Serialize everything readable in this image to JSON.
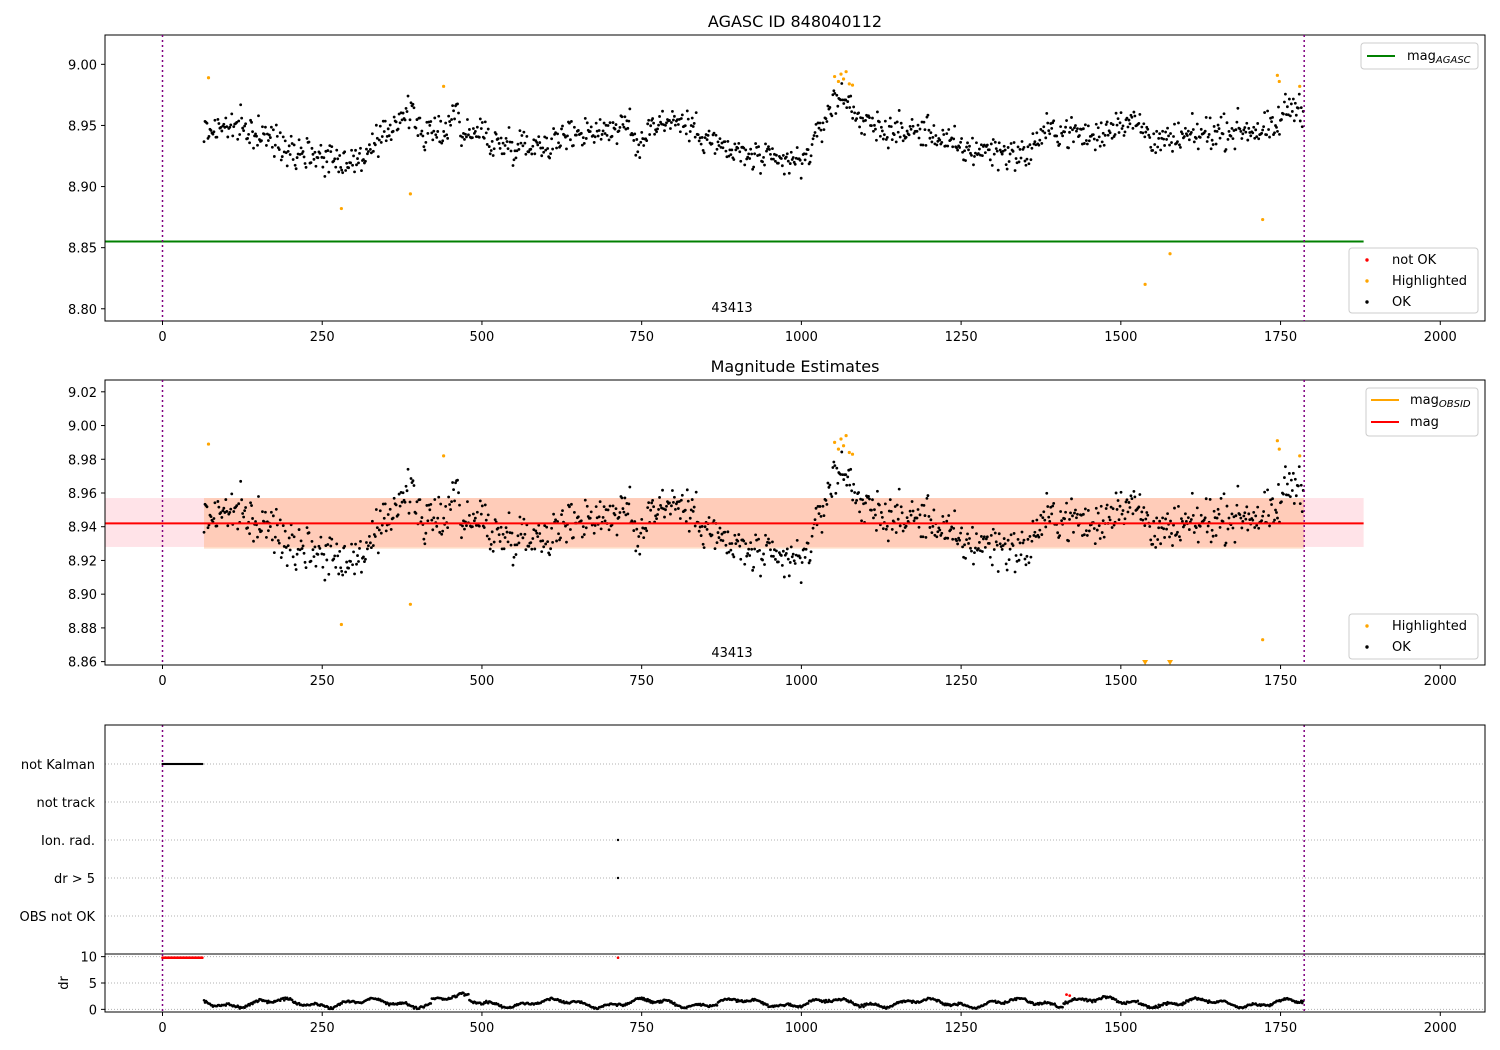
{
  "chart_data": [
    {
      "type": "scatter",
      "title": "AGASC ID 848040112",
      "xlim": [
        -90,
        2070
      ],
      "ylim": [
        8.79,
        9.024
      ],
      "xticks": [
        0,
        250,
        500,
        750,
        1000,
        1250,
        1500,
        1750,
        2000
      ],
      "yticks": [
        8.8,
        8.85,
        8.9,
        8.95,
        9.0
      ],
      "ytick_labels": [
        "8.80",
        "8.85",
        "8.90",
        "8.95",
        "9.00"
      ],
      "annotation": "43413",
      "vlines": [
        0,
        1787
      ],
      "mag_agasc": 8.855,
      "mag_agasc_xmax": 1880,
      "legend_upper": [
        {
          "label": "mag",
          "sub": "AGASC",
          "color": "#008000",
          "kind": "line"
        }
      ],
      "legend_lower": [
        {
          "label": "not OK",
          "color": "#ff0000",
          "kind": "dot"
        },
        {
          "label": "Highlighted",
          "color": "#ffa500",
          "kind": "dot"
        },
        {
          "label": "OK",
          "color": "#000000",
          "kind": "dot"
        }
      ],
      "highlighted_points": [
        [
          72,
          8.989
        ],
        [
          280,
          8.882
        ],
        [
          388,
          8.894
        ],
        [
          440,
          8.982
        ],
        [
          1052,
          8.99
        ],
        [
          1058,
          8.986
        ],
        [
          1062,
          8.992
        ],
        [
          1066,
          8.988
        ],
        [
          1070,
          8.994
        ],
        [
          1075,
          8.984
        ],
        [
          1080,
          8.983
        ],
        [
          1538,
          8.82
        ],
        [
          1577,
          8.845
        ],
        [
          1722,
          8.873
        ],
        [
          1745,
          8.991
        ],
        [
          1748,
          8.986
        ],
        [
          1780,
          8.982
        ]
      ],
      "ok_trend": [
        [
          65,
          8.945
        ],
        [
          100,
          8.95
        ],
        [
          150,
          8.943
        ],
        [
          200,
          8.932
        ],
        [
          250,
          8.925
        ],
        [
          300,
          8.92
        ],
        [
          340,
          8.935
        ],
        [
          370,
          8.958
        ],
        [
          390,
          8.96
        ],
        [
          410,
          8.942
        ],
        [
          440,
          8.945
        ],
        [
          460,
          8.965
        ],
        [
          470,
          8.942
        ],
        [
          500,
          8.945
        ],
        [
          520,
          8.935
        ],
        [
          560,
          8.935
        ],
        [
          600,
          8.935
        ],
        [
          650,
          8.945
        ],
        [
          700,
          8.947
        ],
        [
          730,
          8.95
        ],
        [
          745,
          8.93
        ],
        [
          760,
          8.95
        ],
        [
          800,
          8.955
        ],
        [
          840,
          8.945
        ],
        [
          880,
          8.93
        ],
        [
          920,
          8.925
        ],
        [
          960,
          8.92
        ],
        [
          1000,
          8.92
        ],
        [
          1020,
          8.935
        ],
        [
          1040,
          8.96
        ],
        [
          1060,
          8.975
        ],
        [
          1080,
          8.965
        ],
        [
          1100,
          8.95
        ],
        [
          1150,
          8.945
        ],
        [
          1200,
          8.945
        ],
        [
          1250,
          8.93
        ],
        [
          1300,
          8.93
        ],
        [
          1350,
          8.925
        ],
        [
          1380,
          8.945
        ],
        [
          1420,
          8.945
        ],
        [
          1460,
          8.94
        ],
        [
          1500,
          8.955
        ],
        [
          1530,
          8.95
        ],
        [
          1560,
          8.935
        ],
        [
          1600,
          8.94
        ],
        [
          1650,
          8.945
        ],
        [
          1700,
          8.947
        ],
        [
          1740,
          8.945
        ],
        [
          1760,
          8.965
        ],
        [
          1785,
          8.965
        ]
      ]
    },
    {
      "type": "scatter",
      "title": "Magnitude Estimates",
      "xlim": [
        -90,
        2070
      ],
      "ylim": [
        8.858,
        9.027
      ],
      "xticks": [
        0,
        250,
        500,
        750,
        1000,
        1250,
        1500,
        1750,
        2000
      ],
      "yticks": [
        8.86,
        8.88,
        8.9,
        8.92,
        8.94,
        8.96,
        8.98,
        9.0,
        9.02
      ],
      "ytick_labels": [
        "8.86",
        "8.88",
        "8.90",
        "8.92",
        "8.94",
        "8.96",
        "8.98",
        "9.00",
        "9.02"
      ],
      "annotation": "43413",
      "vlines": [
        0,
        1787
      ],
      "mag": 8.942,
      "mag_band": [
        8.928,
        8.957
      ],
      "mag_band_xmax": 1880,
      "mag_obsid_band": [
        8.927,
        8.957
      ],
      "mag_obsid_range": [
        65,
        1787
      ],
      "legend_upper": [
        {
          "label": "mag",
          "sub": "OBSID",
          "color": "#ffa500",
          "kind": "line"
        },
        {
          "label": "mag",
          "sub": "",
          "color": "#ff0000",
          "kind": "line"
        }
      ],
      "legend_lower": [
        {
          "label": "Highlighted",
          "color": "#ffa500",
          "kind": "dot"
        },
        {
          "label": "OK",
          "color": "#000000",
          "kind": "dot"
        }
      ],
      "out_of_range_x": [
        1538,
        1577
      ]
    },
    {
      "type": "scatter",
      "categories": [
        "not Kalman",
        "not track",
        "Ion. rad.",
        "dr > 5",
        "OBS not OK"
      ],
      "xlim": [
        -90,
        2070
      ],
      "vlines": [
        0,
        1787
      ],
      "flags": {
        "not Kalman": [
          0,
          64
        ],
        "not track": [],
        "Ion. rad.": [
          713
        ],
        "dr > 5": [
          713
        ],
        "OBS not OK": []
      }
    },
    {
      "type": "scatter",
      "ylabel": "dr",
      "xlim": [
        -90,
        2070
      ],
      "ylim": [
        -0.5,
        10.5
      ],
      "xticks": [
        0,
        250,
        500,
        750,
        1000,
        1250,
        1500,
        1750,
        2000
      ],
      "yticks": [
        0,
        5,
        10
      ],
      "vlines": [
        0,
        1787
      ],
      "clipped_red": [
        [
          0,
          64
        ],
        [
          713,
          713
        ]
      ],
      "red_points": [
        [
          1415,
          2.8
        ],
        [
          1420,
          2.6
        ]
      ],
      "ok_range": [
        65,
        1787
      ]
    }
  ]
}
